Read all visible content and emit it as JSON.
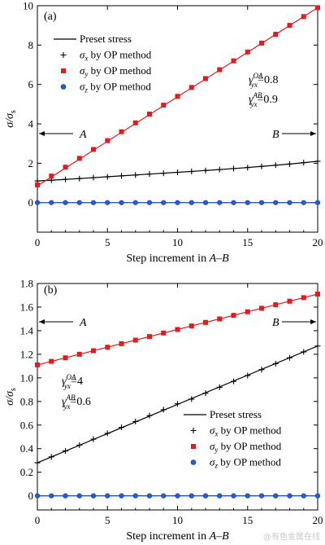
{
  "watermark": "@有色金属在线",
  "chart_data": [
    {
      "type": "scatter",
      "panel_label": "(a)",
      "xlabel_prefix": "Step increment in ",
      "xlabel_range": "A–B",
      "ylabel": "σ/σ",
      "ylabel_sub": "s",
      "xlim": [
        0,
        20
      ],
      "ylim": [
        -1.5,
        10
      ],
      "xticks": [
        0,
        5,
        10,
        15,
        20
      ],
      "yticks": [
        0,
        2,
        4,
        6,
        8,
        10
      ],
      "grid": false,
      "legend_position": "top-left",
      "markers": [
        {
          "text": "A",
          "x": 0,
          "y": 4.05
        },
        {
          "text": "B",
          "x": 20,
          "y": 4.05
        }
      ],
      "annotations": [
        {
          "symbol": "γ",
          "sub": "yx",
          "sup": "OA",
          "value": "=0.8"
        },
        {
          "symbol": "γ",
          "sub": "yx",
          "sup": "AB",
          "value": "=0.9"
        }
      ],
      "preset_lines": [
        {
          "name": "Preset stress",
          "color": "#000000",
          "x": [
            0,
            2,
            4,
            6,
            8,
            10,
            12,
            14,
            16,
            18,
            20
          ],
          "y": [
            1.1,
            1.18,
            1.27,
            1.36,
            1.45,
            1.54,
            1.63,
            1.73,
            1.84,
            1.96,
            2.1
          ]
        },
        {
          "color": "#e41a1c",
          "x": [
            0,
            20
          ],
          "y": [
            0.85,
            9.9
          ]
        },
        {
          "color": "#1f3fbf",
          "x": [
            0,
            20
          ],
          "y": [
            0,
            0
          ]
        }
      ],
      "series": [
        {
          "name_symbol": "σ",
          "name_sub": "x",
          "name_rest": " by OP method",
          "marker": "plus",
          "color": "#000000",
          "x": [
            0,
            1,
            2,
            3,
            4,
            5,
            6,
            7,
            8,
            9,
            10,
            11,
            12,
            13,
            14,
            15,
            16,
            17,
            18,
            19,
            20
          ],
          "y": [
            1.1,
            1.14,
            1.18,
            1.22,
            1.27,
            1.31,
            1.36,
            1.4,
            1.45,
            1.49,
            1.54,
            1.58,
            1.63,
            1.68,
            1.73,
            1.78,
            1.84,
            1.9,
            1.96,
            2.03,
            2.1
          ]
        },
        {
          "name_symbol": "σ",
          "name_sub": "y",
          "name_rest": " by OP method",
          "marker": "square",
          "color": "#e41a1c",
          "x": [
            0,
            1,
            2,
            3,
            4,
            5,
            6,
            7,
            8,
            9,
            10,
            11,
            12,
            13,
            14,
            15,
            16,
            17,
            18,
            19,
            20
          ],
          "y": [
            0.9,
            1.35,
            1.8,
            2.25,
            2.7,
            3.15,
            3.6,
            4.05,
            4.5,
            4.95,
            5.4,
            5.85,
            6.3,
            6.75,
            7.2,
            7.65,
            8.1,
            8.55,
            9.0,
            9.45,
            9.9
          ]
        },
        {
          "name_symbol": "σ",
          "name_sub": "z",
          "name_rest": " by OP method",
          "marker": "circle",
          "color": "#1f5fd8",
          "x": [
            0,
            1,
            2,
            3,
            4,
            5,
            6,
            7,
            8,
            9,
            10,
            11,
            12,
            13,
            14,
            15,
            16,
            17,
            18,
            19,
            20
          ],
          "y": [
            0,
            0,
            0,
            0,
            0,
            0,
            0,
            0,
            0,
            0,
            0,
            0,
            0,
            0,
            0,
            0,
            0,
            0,
            0,
            0,
            0
          ]
        }
      ]
    },
    {
      "type": "scatter",
      "panel_label": "(b)",
      "xlabel_prefix": "Step increment in ",
      "xlabel_range": "A–B",
      "ylabel": "σ/σ",
      "ylabel_sub": "s",
      "xlim": [
        0,
        20
      ],
      "ylim": [
        -0.12,
        1.8
      ],
      "xticks": [
        0,
        5,
        10,
        15,
        20
      ],
      "yticks": [
        0,
        0.2,
        0.4,
        0.6,
        0.8,
        1.0,
        1.2,
        1.4,
        1.6,
        1.8
      ],
      "ytick_labels": [
        "0",
        "0.2",
        "0.4",
        "0.6",
        "0.8",
        "1.0",
        "1.2",
        "1.4",
        "1.6",
        "1.8"
      ],
      "grid": false,
      "legend_position": "bottom-right",
      "markers": [
        {
          "text": "A",
          "x": 0,
          "y": 1.4
        },
        {
          "text": "B",
          "x": 20,
          "y": 1.4
        }
      ],
      "annotations": [
        {
          "symbol": "γ",
          "sub": "yx",
          "sup": "OA",
          "value": "=4"
        },
        {
          "symbol": "γ",
          "sub": "yx",
          "sup": "AB",
          "value": "=0.6"
        }
      ],
      "preset_lines": [
        {
          "name": "Preset stress",
          "color": "#000000",
          "x": [
            0,
            20
          ],
          "y": [
            0.28,
            1.27
          ]
        },
        {
          "color": "#e41a1c",
          "x": [
            0,
            20
          ],
          "y": [
            1.11,
            1.71
          ]
        },
        {
          "color": "#1f3fbf",
          "x": [
            0,
            20
          ],
          "y": [
            0,
            0
          ]
        }
      ],
      "series": [
        {
          "name_symbol": "σ",
          "name_sub": "x",
          "name_rest": " by OP method",
          "marker": "plus",
          "color": "#000000",
          "x": [
            0,
            1,
            2,
            3,
            4,
            5,
            6,
            7,
            8,
            9,
            10,
            11,
            12,
            13,
            14,
            15,
            16,
            17,
            18,
            19,
            20
          ],
          "y": [
            0.28,
            0.33,
            0.38,
            0.43,
            0.48,
            0.53,
            0.58,
            0.63,
            0.68,
            0.73,
            0.78,
            0.82,
            0.87,
            0.92,
            0.97,
            1.02,
            1.07,
            1.12,
            1.17,
            1.22,
            1.27
          ]
        },
        {
          "name_symbol": "σ",
          "name_sub": "y",
          "name_rest": " by OP method",
          "marker": "square",
          "color": "#e41a1c",
          "x": [
            0,
            1,
            2,
            3,
            4,
            5,
            6,
            7,
            8,
            9,
            10,
            11,
            12,
            13,
            14,
            15,
            16,
            17,
            18,
            19,
            20
          ],
          "y": [
            1.11,
            1.14,
            1.17,
            1.2,
            1.23,
            1.26,
            1.29,
            1.32,
            1.35,
            1.38,
            1.41,
            1.44,
            1.47,
            1.5,
            1.53,
            1.56,
            1.59,
            1.62,
            1.65,
            1.68,
            1.71
          ]
        },
        {
          "name_symbol": "σ",
          "name_sub": "z",
          "name_rest": " by OP method",
          "marker": "circle",
          "color": "#1f5fd8",
          "x": [
            0,
            1,
            2,
            3,
            4,
            5,
            6,
            7,
            8,
            9,
            10,
            11,
            12,
            13,
            14,
            15,
            16,
            17,
            18,
            19,
            20
          ],
          "y": [
            0,
            0,
            0,
            0,
            0,
            0,
            0,
            0,
            0,
            0,
            0,
            0,
            0,
            0,
            0,
            0,
            0,
            0,
            0,
            0,
            0
          ]
        }
      ]
    }
  ]
}
